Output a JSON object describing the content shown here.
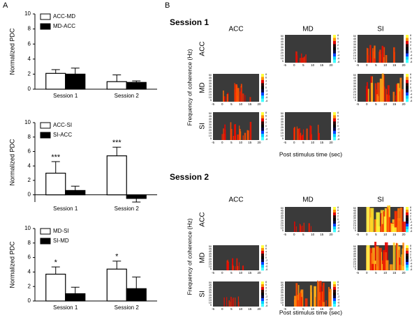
{
  "panel_labels": [
    "A",
    "B"
  ],
  "chart_data": [
    {
      "type": "bar",
      "y_label": "Normalized PDC",
      "categories": [
        "Session 1",
        "Session 2"
      ],
      "series": [
        {
          "name": "ACC-MD",
          "color": "#ffffff",
          "values": [
            2.1,
            1.0
          ],
          "errors": [
            0.5,
            0.9
          ]
        },
        {
          "name": "MD-ACC",
          "color": "#000000",
          "values": [
            2.0,
            0.9
          ],
          "errors": [
            0.8,
            0.2
          ]
        }
      ],
      "ylim": [
        0,
        10
      ],
      "yticks": [
        0,
        2,
        4,
        6,
        8,
        10
      ]
    },
    {
      "type": "bar",
      "y_label": "Normalized PDC",
      "categories": [
        "Session 1",
        "Session 2"
      ],
      "series": [
        {
          "name": "ACC-SI",
          "color": "#ffffff",
          "values": [
            3.0,
            5.4
          ],
          "errors": [
            1.6,
            1.2
          ]
        },
        {
          "name": "SI-ACC",
          "color": "#000000",
          "values": [
            0.6,
            -0.5
          ],
          "errors": [
            0.6,
            0.5
          ]
        }
      ],
      "annotations": [
        "***",
        "***"
      ],
      "ylim": [
        -1,
        10
      ],
      "yticks": [
        0,
        2,
        4,
        6,
        8,
        10
      ]
    },
    {
      "type": "bar",
      "y_label": "Normalized PDC",
      "categories": [
        "Session 1",
        "Session 2"
      ],
      "series": [
        {
          "name": "MD-SI",
          "color": "#ffffff",
          "values": [
            3.7,
            4.4
          ],
          "errors": [
            1.0,
            1.1
          ]
        },
        {
          "name": "SI-MD",
          "color": "#000000",
          "values": [
            1.0,
            1.7
          ],
          "errors": [
            0.9,
            1.6
          ]
        }
      ],
      "annotations": [
        "*",
        "*"
      ],
      "ylim": [
        0,
        10
      ],
      "yticks": [
        0,
        2,
        4,
        6,
        8,
        10
      ]
    }
  ],
  "panel_b": {
    "sessions": [
      "Session 1",
      "Session 2"
    ],
    "regions": [
      "ACC",
      "MD",
      "SI"
    ],
    "y_label": "Frequency of coherence (Hz)",
    "x_label": "Post stimulus time (sec)",
    "xticks": [
      -5,
      0,
      5,
      10,
      15,
      20
    ],
    "yticks": [
      5,
      10,
      15,
      20,
      25,
      30,
      35,
      40,
      45,
      50
    ],
    "colorbar_ticks": [
      8,
      6,
      4,
      2,
      0,
      -2,
      -4,
      -6,
      -8
    ]
  }
}
